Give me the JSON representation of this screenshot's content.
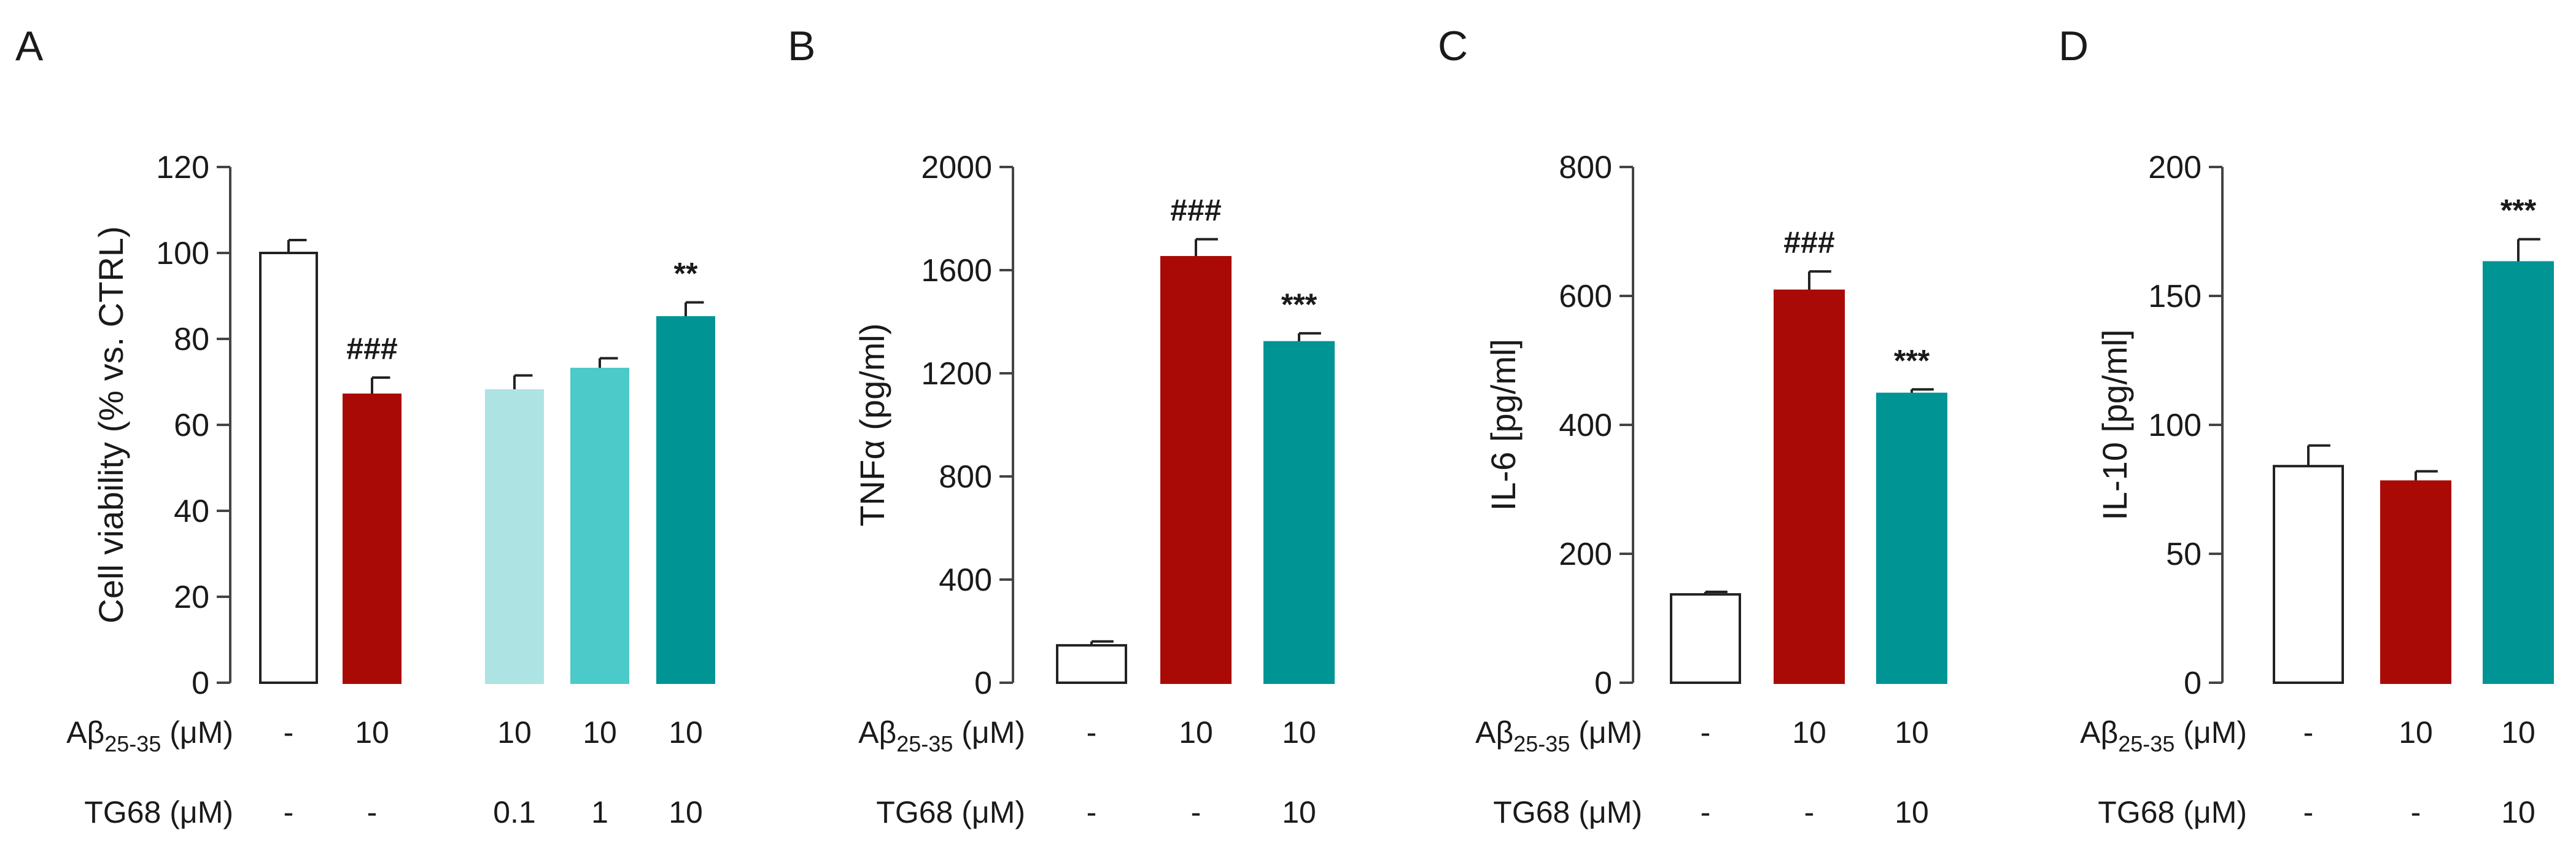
{
  "chart_data": [
    {
      "panel": "A",
      "type": "bar",
      "ylabel": "Cell viability (% vs. CTRL)",
      "ylim": [
        0,
        120
      ],
      "yticks": [
        0,
        20,
        40,
        60,
        80,
        100,
        120
      ],
      "groups": [
        1,
        1,
        2,
        2,
        2
      ],
      "values": [
        100,
        67,
        68,
        73,
        85
      ],
      "errors": [
        3,
        4,
        3.5,
        2.5,
        3.5
      ],
      "colors": [
        "#ffffff",
        "#aa0a06",
        "#ade3e3",
        "#4cc9c9",
        "#009494"
      ],
      "annotations": [
        "",
        "###",
        "",
        "",
        "**"
      ],
      "rows": [
        {
          "label": "Aβ25-35 (μM)",
          "label_main": "Aβ",
          "label_sub": "25-35",
          "label_unit": " (μM)",
          "values": [
            "-",
            "10",
            "10",
            "10",
            "10"
          ]
        },
        {
          "label": "TG68 (μM)",
          "values": [
            "-",
            "-",
            "0.1",
            "1",
            "10"
          ]
        }
      ]
    },
    {
      "panel": "B",
      "type": "bar",
      "ylabel": "TNFα (pg/ml)",
      "ylim": [
        0,
        2000
      ],
      "yticks": [
        0,
        400,
        800,
        1200,
        1600,
        2000
      ],
      "values": [
        145,
        1650,
        1320
      ],
      "errors": [
        15,
        70,
        35
      ],
      "colors": [
        "#ffffff",
        "#aa0a06",
        "#009494"
      ],
      "annotations": [
        "",
        "###",
        "***"
      ],
      "rows": [
        {
          "label": "Aβ25-35 (μM)",
          "label_main": "Aβ",
          "label_sub": "25-35",
          "label_unit": " (μM)",
          "values": [
            "-",
            "10",
            "10"
          ]
        },
        {
          "label": "TG68 (μM)",
          "values": [
            "-",
            "-",
            "10"
          ]
        }
      ]
    },
    {
      "panel": "C",
      "type": "bar",
      "ylabel": "IL-6 [pg/ml]",
      "ylim": [
        0,
        800
      ],
      "yticks": [
        0,
        200,
        400,
        600,
        800
      ],
      "values": [
        137,
        608,
        448
      ],
      "errors": [
        4,
        30,
        7
      ],
      "colors": [
        "#ffffff",
        "#aa0a06",
        "#009494"
      ],
      "annotations": [
        "",
        "###",
        "***"
      ],
      "rows": [
        {
          "label": "Aβ25-35 (μM)",
          "label_main": "Aβ",
          "label_sub": "25-35",
          "label_unit": " (μM)",
          "values": [
            "-",
            "10",
            "10"
          ]
        },
        {
          "label": "TG68 (μM)",
          "values": [
            "-",
            "-",
            "10"
          ]
        }
      ]
    },
    {
      "panel": "D",
      "type": "bar",
      "ylabel": "IL-10 [pg/ml]",
      "ylim": [
        0,
        200
      ],
      "yticks": [
        0,
        50,
        100,
        150,
        200
      ],
      "values": [
        84,
        78,
        163
      ],
      "errors": [
        8,
        4,
        9
      ],
      "colors": [
        "#ffffff",
        "#aa0a06",
        "#009494"
      ],
      "annotations": [
        "",
        "",
        "***"
      ],
      "rows": [
        {
          "label": "Aβ25-35 (μM)",
          "label_main": "Aβ",
          "label_sub": "25-35",
          "label_unit": " (μM)",
          "values": [
            "-",
            "10",
            "10"
          ]
        },
        {
          "label": "TG68 (μM)",
          "values": [
            "-",
            "-",
            "10"
          ]
        }
      ]
    }
  ]
}
